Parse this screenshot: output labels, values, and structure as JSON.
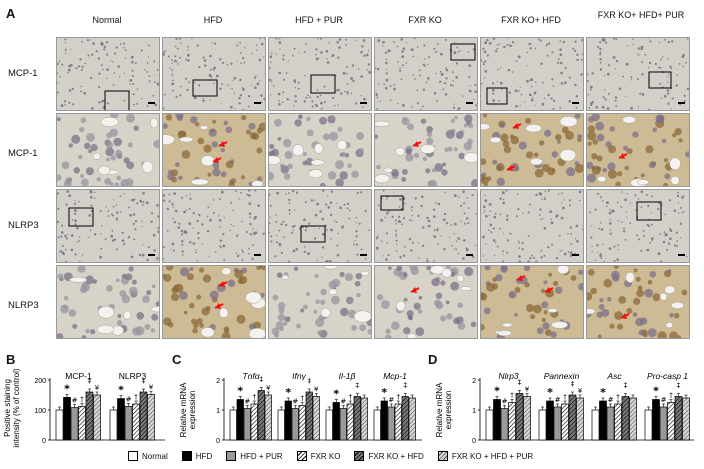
{
  "panels": {
    "A": "A",
    "B": "B",
    "C": "C",
    "D": "D"
  },
  "figure_a": {
    "columns": [
      "Normal",
      "HFD",
      "HFD + PUR",
      "FXR KO",
      "FXR KO+ HFD",
      "FXR KO+ HFD+ PUR"
    ],
    "rows": [
      "MCP-1",
      "MCP-1",
      "NLRP3",
      "NLRP3"
    ]
  },
  "colors": {
    "normal": "#ffffff",
    "hfd": "#000000",
    "hfd_pur": "#9a9a9a",
    "fxr_ko": "#ffffff",
    "fxr_ko_hfd": "#7a7a7a",
    "fxr_ko_hfd_pur": "#d8d8d8",
    "tissue_light": "#d9d6cc",
    "tissue_brown": "#b59a6a",
    "arrow": "#ee1111"
  },
  "legend": [
    "Normal",
    "HFD",
    "HFD + PUR",
    "FXR KO",
    "FXR KO + HFD",
    "FXR KO + HFD + PUR"
  ],
  "chart_data": [
    {
      "type": "bar",
      "panel": "B",
      "ylabel": "Positive staining intensity (% of control)",
      "yticks": [
        "0",
        "100",
        "200"
      ],
      "ylim": [
        0,
        200
      ],
      "categories": [
        "MCP-1",
        "NLRP3"
      ],
      "series": [
        {
          "name": "Normal",
          "values": [
            100,
            100
          ]
        },
        {
          "name": "HFD",
          "values": [
            142,
            138
          ]
        },
        {
          "name": "HFD + PUR",
          "values": [
            108,
            112
          ]
        },
        {
          "name": "FXR KO",
          "values": [
            112,
            120
          ]
        },
        {
          "name": "FXR KO + HFD",
          "values": [
            160,
            160
          ]
        },
        {
          "name": "FXR KO + HFD + PUR",
          "values": [
            150,
            152
          ]
        }
      ],
      "annotations": [
        [
          "*",
          "#",
          "†",
          "‡",
          "¥"
        ],
        [
          "*",
          "#",
          "†",
          "‡",
          "¥"
        ]
      ]
    },
    {
      "type": "bar",
      "panel": "C",
      "ylabel": "Relative mRNA expression",
      "yticks": [
        "0",
        "1",
        "2"
      ],
      "ylim": [
        0,
        2
      ],
      "categories": [
        "Tnfα",
        "Ifnγ",
        "Il-1β",
        "Mcp-1"
      ],
      "series": [
        {
          "name": "Normal",
          "values": [
            1.0,
            1.0,
            1.0,
            1.0
          ]
        },
        {
          "name": "HFD",
          "values": [
            1.35,
            1.3,
            1.25,
            1.3
          ]
        },
        {
          "name": "HFD + PUR",
          "values": [
            1.05,
            1.05,
            1.05,
            1.1
          ]
        },
        {
          "name": "FXR KO",
          "values": [
            1.2,
            1.15,
            1.2,
            1.2
          ]
        },
        {
          "name": "FXR KO + HFD",
          "values": [
            1.65,
            1.6,
            1.45,
            1.45
          ]
        },
        {
          "name": "FXR KO + HFD + PUR",
          "values": [
            1.5,
            1.45,
            1.4,
            1.4
          ]
        }
      ],
      "annotations": [
        [
          "*",
          "#",
          "†",
          "‡",
          "¥"
        ],
        [
          "*",
          "#",
          "†",
          "‡",
          "¥"
        ],
        [
          "*",
          "#",
          "†",
          "‡"
        ],
        [
          "*",
          "#",
          "†",
          "‡"
        ]
      ]
    },
    {
      "type": "bar",
      "panel": "D",
      "ylabel": "Relative mRNA expression",
      "yticks": [
        "0",
        "1",
        "2"
      ],
      "ylim": [
        0,
        2
      ],
      "categories": [
        "Nlrp3",
        "Pannexin",
        "Asc",
        "Pro-casp 1"
      ],
      "series": [
        {
          "name": "Normal",
          "values": [
            1.0,
            1.0,
            1.0,
            1.0
          ]
        },
        {
          "name": "HFD",
          "values": [
            1.35,
            1.3,
            1.3,
            1.35
          ]
        },
        {
          "name": "HFD + PUR",
          "values": [
            1.05,
            1.1,
            1.1,
            1.1
          ]
        },
        {
          "name": "FXR KO",
          "values": [
            1.25,
            1.2,
            1.2,
            1.25
          ]
        },
        {
          "name": "FXR KO + HFD",
          "values": [
            1.55,
            1.5,
            1.45,
            1.45
          ]
        },
        {
          "name": "FXR KO + HFD + PUR",
          "values": [
            1.45,
            1.4,
            1.4,
            1.4
          ]
        }
      ],
      "annotations": [
        [
          "*",
          "#",
          "†",
          "‡",
          "¥"
        ],
        [
          "*",
          "#",
          "†",
          "‡",
          "¥"
        ],
        [
          "*",
          "#",
          "†",
          "‡"
        ],
        [
          "*",
          "#",
          "†",
          "‡"
        ]
      ]
    }
  ]
}
